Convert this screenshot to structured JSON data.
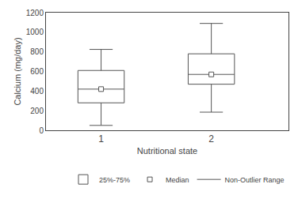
{
  "chart_data": {
    "type": "box",
    "xlabel": "Nutritional state",
    "ylabel": "Calcium (mg/day)",
    "x": [
      1,
      2
    ],
    "whisker_low": [
      50,
      185
    ],
    "q1": [
      280,
      470
    ],
    "median": [
      420,
      570
    ],
    "q3": [
      610,
      780
    ],
    "whisker_high": [
      825,
      1090
    ],
    "xlim": [
      0.5,
      2.7
    ],
    "xticks": [
      1,
      2
    ],
    "ylim": [
      0,
      1200
    ],
    "yticks": [
      0,
      200,
      400,
      600,
      800,
      1000,
      1200
    ],
    "legend_entries": [
      "Median",
      "25%-75%",
      "Non-Outlier Range"
    ],
    "legend": "lower right",
    "marker": "square",
    "color": "#555555",
    "grid": false
  }
}
